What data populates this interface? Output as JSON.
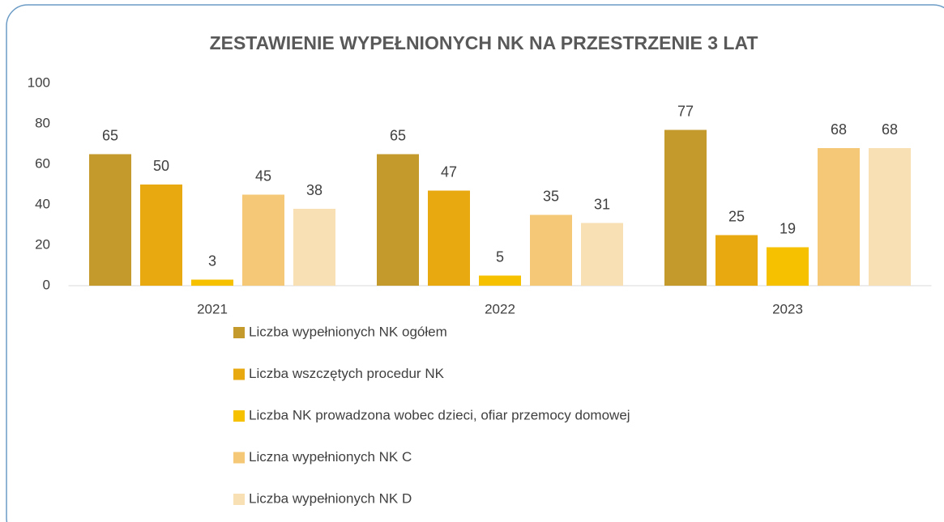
{
  "chart_data": {
    "type": "bar",
    "title": "ZESTAWIENIE WYPEŁNIONYCH NK NA PRZESTRZENIE 3 LAT",
    "categories": [
      "2021",
      "2022",
      "2023"
    ],
    "series": [
      {
        "name": "Liczba wypełnionych NK ogółem",
        "color": "#c49a2c",
        "values": [
          65,
          65,
          77
        ]
      },
      {
        "name": "Liczba wszczętych procedur NK",
        "color": "#e8a910",
        "values": [
          50,
          47,
          25
        ]
      },
      {
        "name": "Liczba NK prowadzona wobec dzieci, ofiar przemocy domowej",
        "color": "#f6c200",
        "values": [
          3,
          5,
          19
        ]
      },
      {
        "name": "Liczna wypełnionych NK C",
        "color": "#f5c878",
        "values": [
          45,
          35,
          68
        ]
      },
      {
        "name": "Liczba wypełnionych NK D",
        "color": "#f9dfb4",
        "values": [
          38,
          31,
          68
        ]
      }
    ],
    "ylim": [
      0,
      100
    ],
    "yticks": [
      0,
      20,
      40,
      60,
      80,
      100
    ],
    "grid": false,
    "legend": "bottom"
  }
}
